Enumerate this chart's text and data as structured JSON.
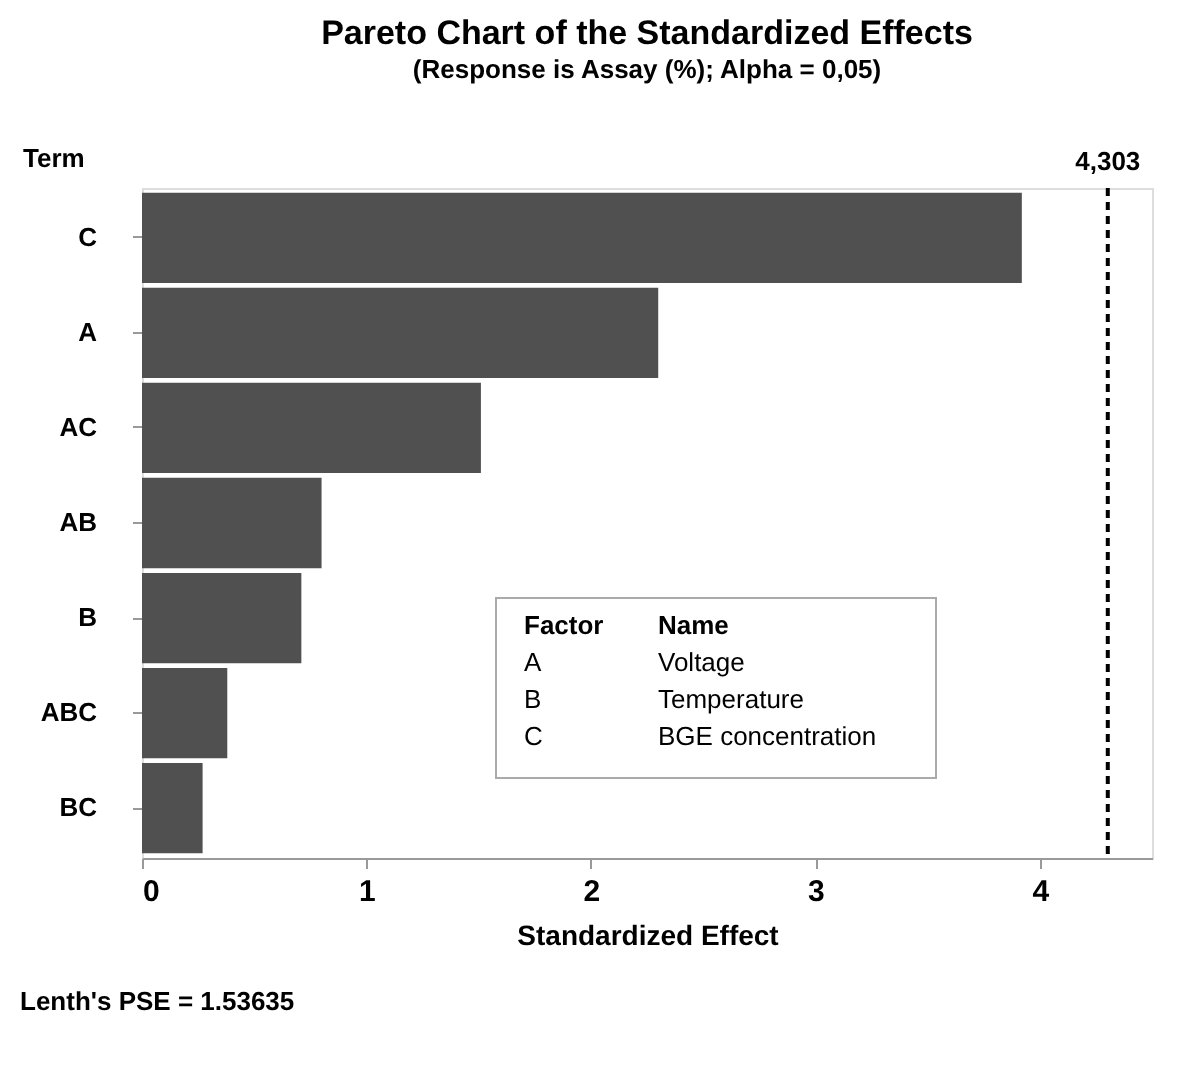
{
  "chart_data": {
    "type": "bar",
    "orientation": "horizontal",
    "title": "Pareto Chart of the Standardized Effects",
    "subtitle": "(Response is Assay (%); Alpha = 0,05)",
    "ylabel": "Term",
    "xlabel": "Standardized Effect",
    "categories": [
      "C",
      "A",
      "AC",
      "AB",
      "B",
      "ABC",
      "BC"
    ],
    "values": [
      3.92,
      2.3,
      1.51,
      0.8,
      0.71,
      0.38,
      0.27
    ],
    "color": "#505050",
    "xlim": [
      0,
      4.5
    ],
    "xticks": [
      0,
      1,
      2,
      3,
      4
    ],
    "grid": false,
    "ref_lines": [
      {
        "axis": "x",
        "value": 4.303,
        "label": "4,303",
        "line_style": "dashed",
        "color": "#000000"
      }
    ],
    "annotations": [
      "Factor",
      "Name",
      "A",
      "Voltage",
      "B",
      "Temperature",
      "C",
      "BGE concentration",
      "Lenth's PSE = 1.53635"
    ]
  }
}
